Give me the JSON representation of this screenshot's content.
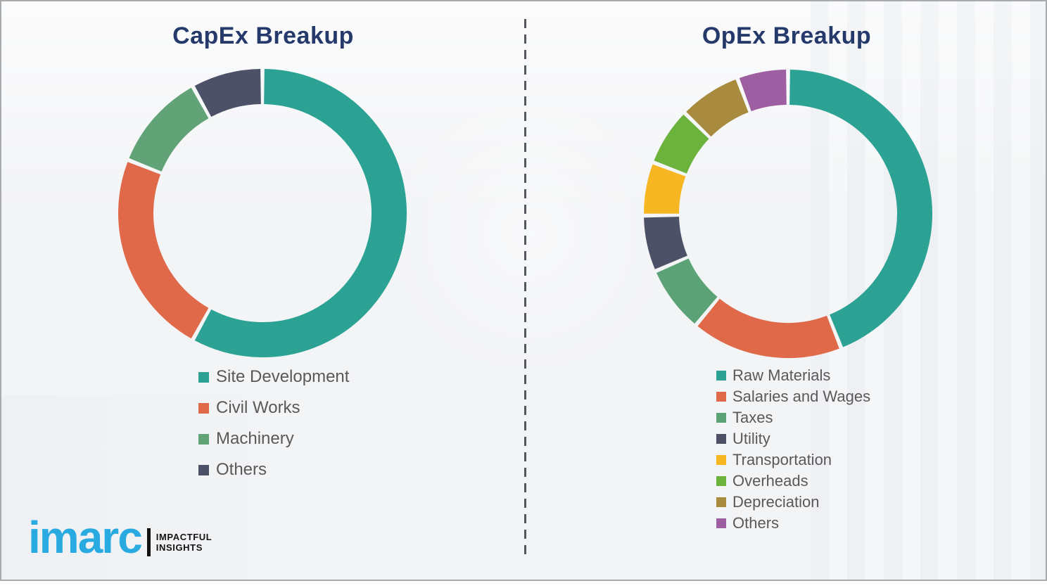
{
  "page": {
    "background_color": "#f3f4f6",
    "border_color": "#a8abae",
    "divider_style": "vertical-dashed",
    "divider_color": "#54585e",
    "title_color": "#253a6b",
    "legend_text_color": "#595959"
  },
  "branding": {
    "logo_text": "imarc",
    "logo_color": "#29abe2",
    "tagline_line1": "IMPACTFUL",
    "tagline_line2": "INSIGHTS"
  },
  "chart_data": [
    {
      "type": "pie",
      "subtype": "donut",
      "title": "CapEx Breakup",
      "start_angle_deg": 0,
      "direction": "clockwise",
      "legend_position": "below-left",
      "segments": [
        {
          "label": "Site Development",
          "value": 58,
          "color": "#2ba294"
        },
        {
          "label": "Civil Works",
          "value": 23,
          "color": "#e0694a"
        },
        {
          "label": "Machinery",
          "value": 11,
          "color": "#61a376"
        },
        {
          "label": "Others",
          "value": 8,
          "color": "#4c5168"
        }
      ]
    },
    {
      "type": "pie",
      "subtype": "donut",
      "title": "OpEx Breakup",
      "start_angle_deg": 0,
      "direction": "clockwise",
      "legend_position": "below-left",
      "segments": [
        {
          "label": "Raw Materials",
          "value": 44,
          "color": "#2ba294"
        },
        {
          "label": "Salaries and Wages",
          "value": 17,
          "color": "#e0694a"
        },
        {
          "label": "Taxes",
          "value": 7.5,
          "color": "#5ba377"
        },
        {
          "label": "Utility",
          "value": 6.3,
          "color": "#4c5168"
        },
        {
          "label": "Transportation",
          "value": 6,
          "color": "#f7b723"
        },
        {
          "label": "Overheads",
          "value": 6.5,
          "color": "#6cb33e"
        },
        {
          "label": "Depreciation",
          "value": 7,
          "color": "#a88b3e"
        },
        {
          "label": "Others",
          "value": 5.7,
          "color": "#9e5ea2"
        }
      ]
    }
  ]
}
